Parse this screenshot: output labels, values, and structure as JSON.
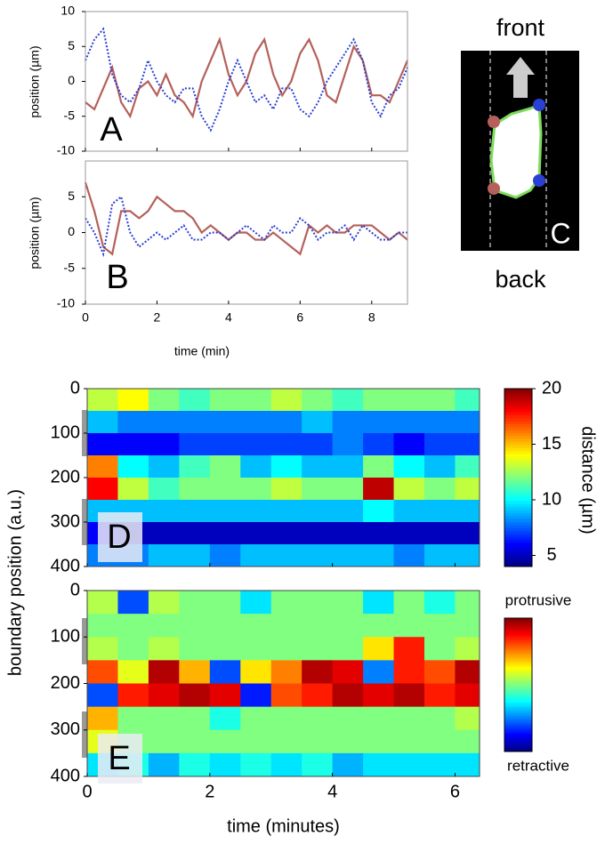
{
  "chart_data": [
    {
      "type": "line",
      "label": "A",
      "y_label": "position (µm)",
      "xlim": [
        0,
        9
      ],
      "xticks": [
        0,
        2,
        4,
        6,
        8
      ],
      "xtick_labels": false,
      "ylim": [
        -10,
        10
      ],
      "yticks": [
        -10,
        -5,
        0,
        5,
        10
      ],
      "x": [
        0,
        0.25,
        0.5,
        0.75,
        1,
        1.25,
        1.5,
        1.75,
        2,
        2.25,
        2.5,
        2.75,
        3,
        3.25,
        3.5,
        3.75,
        4,
        4.25,
        4.5,
        4.75,
        5,
        5.25,
        5.5,
        5.75,
        6,
        6.25,
        6.5,
        6.75,
        7,
        7.25,
        7.5,
        7.75,
        8,
        8.25,
        8.5,
        8.75,
        9
      ],
      "series": [
        {
          "color": "#b5605a",
          "dash": false,
          "values": [
            -3,
            -4,
            -1,
            2,
            -3,
            -5,
            -1,
            0,
            -2,
            1,
            -2,
            -3,
            -5,
            0,
            3,
            6,
            1,
            -2,
            0,
            4,
            6,
            1,
            -2,
            0,
            4,
            6,
            3,
            -2,
            -3,
            1,
            5,
            3,
            -2,
            -2,
            -3,
            0,
            3
          ]
        },
        {
          "color": "#2a3fd4",
          "dash": true,
          "values": [
            3,
            6,
            7.5,
            1,
            -2,
            -3,
            -1,
            3,
            0,
            -2,
            -3,
            -1,
            -1,
            -5,
            -7,
            -4,
            0,
            3,
            0,
            -3,
            -2,
            -4,
            -1,
            -1,
            -4,
            -5,
            -3,
            0,
            2,
            4,
            6,
            3,
            -3,
            -5,
            -2,
            -1,
            2
          ]
        }
      ]
    },
    {
      "type": "line",
      "label": "B",
      "y_label": "position (µm)",
      "x_label": "time (min)",
      "xlim": [
        0,
        9
      ],
      "xticks": [
        0,
        2,
        4,
        6,
        8
      ],
      "xtick_labels": true,
      "ylim": [
        -10,
        10
      ],
      "yticks": [
        -10,
        -5,
        0,
        5
      ],
      "x": [
        0,
        0.25,
        0.5,
        0.75,
        1,
        1.25,
        1.5,
        1.75,
        2,
        2.25,
        2.5,
        2.75,
        3,
        3.25,
        3.5,
        3.75,
        4,
        4.25,
        4.5,
        4.75,
        5,
        5.25,
        5.5,
        5.75,
        6,
        6.25,
        6.5,
        6.75,
        7,
        7.25,
        7.5,
        7.75,
        8,
        8.25,
        8.5,
        8.75,
        9
      ],
      "series": [
        {
          "color": "#b5605a",
          "dash": false,
          "values": [
            7,
            3,
            -2,
            -3,
            3,
            3,
            2,
            3,
            5,
            4,
            3,
            3,
            2,
            0,
            1,
            0,
            -1,
            0,
            0,
            -1,
            -1,
            0,
            -1,
            -2,
            -3,
            1,
            0,
            1,
            0,
            0,
            1,
            1,
            1,
            0,
            -1,
            0,
            -1
          ]
        },
        {
          "color": "#2a3fd4",
          "dash": true,
          "values": [
            2,
            0,
            -3,
            4,
            5,
            0,
            -2,
            -1,
            0,
            -1,
            0,
            1,
            -1,
            -1,
            0,
            0,
            -1,
            0,
            1,
            0,
            -1,
            1,
            0,
            0,
            2,
            1,
            -1,
            0,
            0,
            1,
            -1,
            1,
            0,
            -1,
            -1,
            0,
            0
          ]
        }
      ]
    },
    {
      "type": "heatmap",
      "label": "D",
      "y_label": "boundary position (a.u.)",
      "colorbar_label": "distance (µm)",
      "xlim": [
        0,
        6.4
      ],
      "xticks": [
        0,
        2,
        4,
        6
      ],
      "xtick_labels": false,
      "ylim": [
        0,
        400
      ],
      "yticks": [
        0,
        100,
        200,
        300,
        400
      ],
      "zlim": [
        4,
        20
      ],
      "colorbar_ticks": [
        5,
        10,
        15,
        20
      ],
      "x": [
        0.25,
        0.75,
        1.25,
        1.75,
        2.25,
        2.75,
        3.25,
        3.75,
        4.25,
        4.75,
        5.25,
        5.75,
        6.25
      ],
      "y": [
        25,
        75,
        125,
        175,
        225,
        275,
        325,
        375
      ],
      "z": [
        [
          13,
          14,
          12,
          11,
          12,
          12,
          13,
          12,
          11,
          12,
          12,
          12,
          11
        ],
        [
          9,
          8,
          8,
          8,
          8,
          8,
          8,
          9,
          8,
          8,
          8,
          8,
          8
        ],
        [
          6,
          6,
          6,
          7,
          7,
          7,
          7,
          7,
          8,
          7,
          6,
          7,
          7
        ],
        [
          16,
          10,
          9,
          11,
          12,
          9,
          10,
          9,
          9,
          12,
          10,
          9,
          11
        ],
        [
          18,
          13,
          11,
          12,
          12,
          12,
          13,
          12,
          12,
          19,
          13,
          12,
          13
        ],
        [
          9,
          9,
          9,
          9,
          9,
          9,
          9,
          9,
          9,
          10,
          9,
          9,
          9
        ],
        [
          6,
          5,
          5,
          5,
          5,
          5,
          5,
          5,
          5,
          5,
          5,
          5,
          5
        ],
        [
          8,
          8,
          9,
          9,
          8,
          9,
          9,
          9,
          9,
          9,
          8,
          9,
          9
        ]
      ]
    },
    {
      "type": "heatmap",
      "label": "E",
      "x_label": "time (minutes)",
      "colorbar_top": "protrusive",
      "colorbar_bottom": "retractive",
      "xlim": [
        0,
        6.4
      ],
      "xticks": [
        0,
        2,
        4,
        6
      ],
      "xtick_labels": true,
      "ylim": [
        0,
        400
      ],
      "yticks": [
        0,
        100,
        200,
        300,
        400
      ],
      "zlim": [
        -1,
        1
      ],
      "x": [
        0.25,
        0.75,
        1.25,
        1.75,
        2.25,
        2.75,
        3.25,
        3.75,
        4.25,
        4.75,
        5.25,
        5.75,
        6.25
      ],
      "y": [
        25,
        75,
        125,
        175,
        225,
        275,
        325,
        375
      ],
      "z": [
        [
          0.1,
          -0.6,
          0.1,
          0,
          0,
          -0.3,
          0,
          0,
          0,
          -0.3,
          0,
          -0.2,
          0
        ],
        [
          0,
          0,
          0,
          0,
          0,
          0,
          0,
          0,
          0,
          0,
          0,
          0,
          0
        ],
        [
          0.1,
          0,
          0.1,
          0,
          0,
          0,
          0,
          0,
          0,
          0.3,
          0.7,
          0,
          0.1
        ],
        [
          0.6,
          0.2,
          0.9,
          0.4,
          -0.6,
          0.3,
          0.5,
          0.9,
          0.8,
          -0.5,
          0.7,
          0.6,
          0.9
        ],
        [
          -0.6,
          0.7,
          0.8,
          0.9,
          0.8,
          -0.7,
          0.6,
          0.7,
          0.9,
          0.8,
          0.9,
          0.7,
          0.8
        ],
        [
          0.4,
          0,
          0,
          0,
          -0.2,
          0,
          0,
          0,
          0,
          0,
          0,
          0,
          0.1
        ],
        [
          0.2,
          0,
          0,
          0,
          0,
          0,
          0,
          0,
          0,
          0,
          0,
          0,
          0
        ],
        [
          -0.3,
          -0.2,
          -0.4,
          -0.2,
          -0.3,
          -0.2,
          -0.3,
          -0.2,
          -0.4,
          -0.3,
          -0.3,
          -0.3,
          -0.3
        ]
      ]
    }
  ],
  "diagram": {
    "top": "front",
    "bottom": "back",
    "label": "C"
  }
}
